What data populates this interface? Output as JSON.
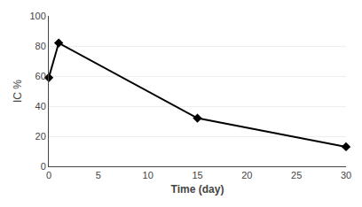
{
  "chart_data": {
    "type": "line",
    "x": [
      0,
      1,
      15,
      30
    ],
    "values": [
      59,
      82,
      32,
      13
    ],
    "xlabel": "Time (day)",
    "ylabel": "IC %",
    "xlim": [
      0,
      30
    ],
    "ylim": [
      0,
      100
    ],
    "xticks": [
      0,
      5,
      10,
      15,
      20,
      25,
      30
    ],
    "yticks": [
      0,
      20,
      40,
      60,
      80,
      100
    ],
    "color": "#000000",
    "marker": "diamond",
    "grid": true
  }
}
